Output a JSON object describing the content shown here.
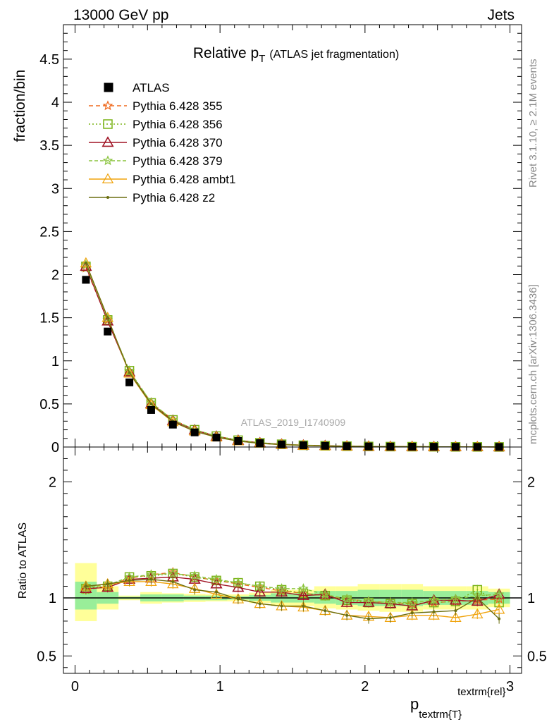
{
  "header": {
    "left": "13000 GeV pp",
    "right": "Jets"
  },
  "side": {
    "rivet": "Rivet 3.1.10, ≥ 2.1M events",
    "mcplots": "mcplots.cern.ch [arXiv:1306.3436]"
  },
  "chart_data": {
    "type": "line",
    "title_main": "Relative p",
    "title_sub": "T",
    "title_rest": "(ATLAS jet fragmentation)",
    "watermark": "ATLAS_2019_I1740909",
    "ylabel": "fraction/bin",
    "ratio_ylabel": "Ratio to ATLAS",
    "xlabel_main": "p",
    "xlabel_sub": "textrm{T}",
    "xlabel_sup": "textrm{rel}",
    "xlim": [
      -0.08,
      3.08
    ],
    "ylim": [
      0,
      4.9
    ],
    "ratio_ylim": [
      0.35,
      2.3
    ],
    "x_ticks": [
      {
        "v": 0,
        "label": "0"
      },
      {
        "v": 1,
        "label": "1"
      },
      {
        "v": 2,
        "label": "2"
      },
      {
        "v": 3,
        "label": "3"
      }
    ],
    "y_ticks": [
      {
        "v": 0,
        "label": "0"
      },
      {
        "v": 0.5,
        "label": "0.5"
      },
      {
        "v": 1,
        "label": "1"
      },
      {
        "v": 1.5,
        "label": "1.5"
      },
      {
        "v": 2,
        "label": "2"
      },
      {
        "v": 2.5,
        "label": "2.5"
      },
      {
        "v": 3,
        "label": "3"
      },
      {
        "v": 3.5,
        "label": "3.5"
      },
      {
        "v": 4,
        "label": "4"
      },
      {
        "v": 4.5,
        "label": "4.5"
      }
    ],
    "ratio_ticks": [
      {
        "v": 0.5,
        "label": "0.5"
      },
      {
        "v": 1,
        "label": "1"
      },
      {
        "v": 2,
        "label": "2"
      }
    ],
    "x": [
      0.075,
      0.225,
      0.375,
      0.525,
      0.675,
      0.825,
      0.975,
      1.125,
      1.275,
      1.425,
      1.575,
      1.725,
      1.875,
      2.025,
      2.175,
      2.325,
      2.475,
      2.625,
      2.775,
      2.925
    ],
    "bin_edges": [
      0,
      0.15,
      0.3,
      0.45,
      0.6,
      0.75,
      0.9,
      1.05,
      1.2,
      1.35,
      1.5,
      1.65,
      1.8,
      1.95,
      2.1,
      2.25,
      2.4,
      2.55,
      2.7,
      2.85,
      3.0
    ],
    "data": {
      "name": "ATLAS",
      "values": [
        1.94,
        1.34,
        0.75,
        0.43,
        0.26,
        0.17,
        0.11,
        0.07,
        0.045,
        0.03,
        0.02,
        0.014,
        0.01,
        0.007,
        0.005,
        0.004,
        0.003,
        0.002,
        0.0015,
        0.001
      ]
    },
    "band_inner": [
      [
        0.9,
        1.14
      ],
      [
        0.95,
        1.05
      ],
      [
        0.99,
        1.01
      ],
      [
        0.97,
        1.03
      ],
      [
        0.97,
        1.03
      ],
      [
        0.98,
        1.02
      ],
      [
        0.98,
        1.02
      ],
      [
        0.985,
        1.015
      ],
      [
        0.975,
        1.025
      ],
      [
        0.96,
        1.04
      ],
      [
        0.96,
        1.04
      ],
      [
        0.95,
        1.06
      ],
      [
        0.94,
        1.06
      ],
      [
        0.93,
        1.07
      ],
      [
        0.93,
        1.07
      ],
      [
        0.93,
        1.07
      ],
      [
        0.94,
        1.06
      ],
      [
        0.94,
        1.06
      ],
      [
        0.94,
        1.06
      ],
      [
        0.95,
        1.05
      ]
    ],
    "band_outer": [
      [
        0.8,
        1.3
      ],
      [
        0.9,
        1.1
      ],
      [
        0.98,
        1.02
      ],
      [
        0.95,
        1.05
      ],
      [
        0.96,
        1.04
      ],
      [
        0.965,
        1.035
      ],
      [
        0.97,
        1.03
      ],
      [
        0.97,
        1.03
      ],
      [
        0.955,
        1.045
      ],
      [
        0.93,
        1.07
      ],
      [
        0.93,
        1.07
      ],
      [
        0.91,
        1.1
      ],
      [
        0.9,
        1.1
      ],
      [
        0.89,
        1.12
      ],
      [
        0.88,
        1.12
      ],
      [
        0.88,
        1.12
      ],
      [
        0.9,
        1.1
      ],
      [
        0.9,
        1.1
      ],
      [
        0.9,
        1.1
      ],
      [
        0.92,
        1.08
      ]
    ],
    "series": [
      {
        "name": "Pythia 6.428 355",
        "color": "#ef6a1f",
        "dash": "6,4",
        "marker": "star",
        "ratio": [
          1.07,
          1.1,
          1.17,
          1.2,
          1.22,
          1.18,
          1.15,
          1.12,
          1.09,
          1.06,
          1.04,
          1.02,
          0.99,
          0.97,
          0.96,
          0.95,
          0.96,
          0.97,
          0.98,
          0.99
        ]
      },
      {
        "name": "Pythia 6.428 356",
        "color": "#7ab317",
        "dash": "2,3",
        "marker": "square",
        "ratio": [
          1.08,
          1.1,
          1.18,
          1.19,
          1.21,
          1.18,
          1.15,
          1.13,
          1.1,
          1.07,
          1.04,
          1.02,
          0.98,
          0.96,
          0.95,
          0.95,
          0.96,
          0.97,
          1.07,
          0.96
        ]
      },
      {
        "name": "Pythia 6.428 370",
        "color": "#a01425",
        "dash": "",
        "marker": "triangle",
        "ratio": [
          1.08,
          1.09,
          1.16,
          1.17,
          1.18,
          1.16,
          1.12,
          1.09,
          1.05,
          1.05,
          1.02,
          1.03,
          0.96,
          0.96,
          0.95,
          0.93,
          0.98,
          0.98,
          0.97,
          1.03
        ]
      },
      {
        "name": "Pythia 6.428 379",
        "color": "#8ac43d",
        "dash": "5,3",
        "marker": "star",
        "ratio": [
          1.09,
          1.11,
          1.18,
          1.2,
          1.21,
          1.19,
          1.16,
          1.13,
          1.1,
          1.08,
          1.08,
          1.03,
          0.99,
          0.97,
          0.96,
          0.96,
          0.98,
          0.99,
          1.02,
          1.03
        ]
      },
      {
        "name": "Pythia 6.428 ambt1",
        "color": "#f0a30c",
        "dash": "",
        "marker": "triangle-open",
        "ratio": [
          1.1,
          1.12,
          1.14,
          1.14,
          1.12,
          1.08,
          1.03,
          0.99,
          0.95,
          0.93,
          0.92,
          0.89,
          0.85,
          0.84,
          0.83,
          0.85,
          0.85,
          0.83,
          0.86,
          0.9
        ]
      },
      {
        "name": "Pythia 6.428 z2",
        "color": "#6b6f10",
        "dash": "",
        "marker": "dot",
        "ratio": [
          1.1,
          1.12,
          1.15,
          1.16,
          1.14,
          1.07,
          1.05,
          0.99,
          0.95,
          0.93,
          0.93,
          0.89,
          0.85,
          0.82,
          0.83,
          0.87,
          0.88,
          0.89,
          1.0,
          0.82
        ]
      }
    ]
  }
}
